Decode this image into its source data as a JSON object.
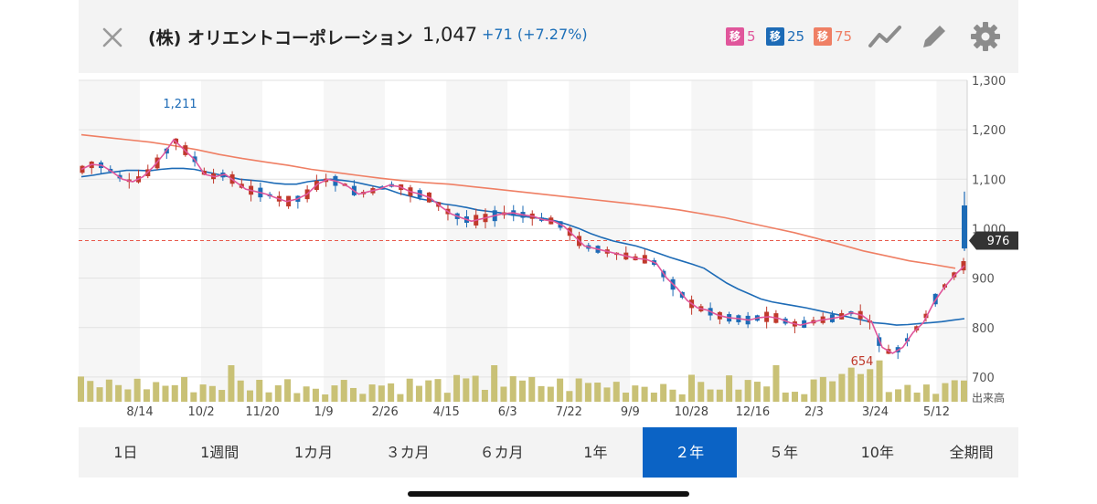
{
  "header": {
    "title": "(株) オリエントコーポレーション",
    "price": "1,047",
    "change": "+71 (+7.27%)",
    "moving_averages": [
      {
        "badge": "移",
        "period": "5",
        "color": "#e0569b"
      },
      {
        "badge": "移",
        "period": "25",
        "color": "#1d6bb6"
      },
      {
        "badge": "移",
        "period": "75",
        "color": "#ef7f64"
      }
    ],
    "icons": [
      "close-icon",
      "line-chart-icon",
      "pencil-icon",
      "gear-icon"
    ]
  },
  "chart_data": {
    "type": "candlestick",
    "x_ticks": [
      "8/14",
      "10/2",
      "11/20",
      "1/9",
      "2/26",
      "4/15",
      "6/3",
      "7/22",
      "9/9",
      "10/28",
      "12/16",
      "2/3",
      "3/24",
      "5/12"
    ],
    "y_ticks": [
      "1,300",
      "1,200",
      "1,100",
      "1,000",
      "900",
      "800",
      "700"
    ],
    "ylim": [
      650,
      1300
    ],
    "volume_label": "出来高",
    "annotations": {
      "high": "1,211",
      "low": "654",
      "current": "976"
    },
    "current_value": 976,
    "ma5": [
      1120,
      1130,
      1128,
      1115,
      1100,
      1095,
      1105,
      1125,
      1150,
      1180,
      1160,
      1140,
      1110,
      1105,
      1110,
      1095,
      1080,
      1075,
      1070,
      1062,
      1055,
      1060,
      1070,
      1090,
      1100,
      1095,
      1085,
      1070,
      1075,
      1080,
      1088,
      1085,
      1075,
      1070,
      1062,
      1045,
      1030,
      1022,
      1015,
      1020,
      1025,
      1030,
      1032,
      1028,
      1025,
      1018,
      1015,
      1005,
      985,
      965,
      960,
      955,
      950,
      945,
      940,
      938,
      930,
      900,
      880,
      855,
      840,
      835,
      825,
      820,
      818,
      815,
      820,
      822,
      818,
      810,
      805,
      810,
      815,
      818,
      822,
      830,
      825,
      810,
      760,
      748,
      760,
      790,
      810,
      850,
      880,
      905,
      925
    ],
    "ma25": [
      1105,
      1108,
      1112,
      1115,
      1118,
      1118,
      1117,
      1120,
      1122,
      1122,
      1120,
      1115,
      1110,
      1105,
      1100,
      1098,
      1096,
      1092,
      1090,
      1090,
      1095,
      1098,
      1100,
      1098,
      1095,
      1090,
      1085,
      1080,
      1072,
      1066,
      1060,
      1056,
      1050,
      1047,
      1043,
      1038,
      1035,
      1032,
      1028,
      1025,
      1022,
      1020,
      1015,
      1008,
      1000,
      990,
      982,
      975,
      970,
      965,
      958,
      950,
      942,
      935,
      928,
      920,
      905,
      890,
      878,
      868,
      858,
      852,
      848,
      844,
      840,
      835,
      830,
      825,
      820,
      815,
      810,
      808,
      805,
      806,
      808,
      810,
      812,
      815,
      818
    ],
    "ma75": [
      1190,
      1185,
      1180,
      1175,
      1168,
      1160,
      1150,
      1142,
      1135,
      1128,
      1120,
      1114,
      1108,
      1102,
      1097,
      1093,
      1090,
      1085,
      1080,
      1075,
      1070,
      1065,
      1060,
      1055,
      1050,
      1044,
      1038,
      1030,
      1022,
      1012,
      1002,
      992,
      980,
      968,
      955,
      945,
      935,
      928,
      920
    ]
  },
  "period_tabs": [
    "1日",
    "1週間",
    "1カ月",
    "３カ月",
    "６カ月",
    "1年",
    "２年",
    "５年",
    "10年",
    "全期間"
  ],
  "active_tab": "２年"
}
